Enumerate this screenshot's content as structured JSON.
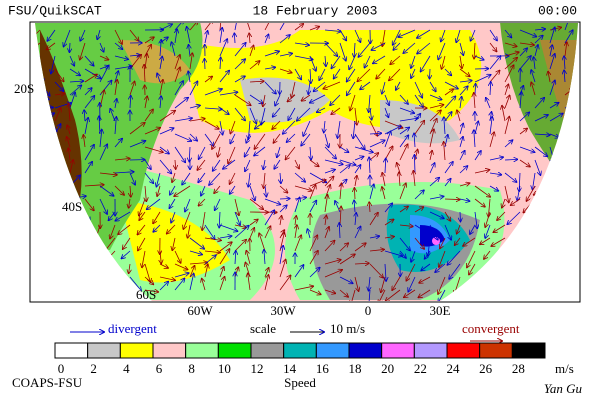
{
  "header": {
    "title": "FSU/QuikSCAT",
    "date": "18 February 2003",
    "time": "00:00"
  },
  "map": {
    "lat_labels": [
      "20S",
      "40S",
      "60S"
    ],
    "lon_labels": [
      "60W",
      "30W",
      "0",
      "30E"
    ]
  },
  "legend": {
    "divergent": "divergent",
    "scale": "scale",
    "scale_value": "10 m/s",
    "convergent": "convergent",
    "divergent_color": "#0000cc",
    "convergent_color": "#990000"
  },
  "colorbar": {
    "title": "Speed",
    "unit": "m/s",
    "labels": [
      "0",
      "2",
      "4",
      "6",
      "8",
      "10",
      "12",
      "14",
      "16",
      "18",
      "20",
      "22",
      "24",
      "26",
      "28"
    ],
    "colors": [
      "#ffffff",
      "#c8c8c8",
      "#ffff00",
      "#ffc8c8",
      "#99ff99",
      "#00e000",
      "#999999",
      "#00b3b3",
      "#3399ff",
      "#0000cc",
      "#ff66ff",
      "#b399ff",
      "#ff0000",
      "#cc3300",
      "#000000"
    ]
  },
  "footer": {
    "left": "COAPS-FSU",
    "right": "Yan Gu"
  }
}
